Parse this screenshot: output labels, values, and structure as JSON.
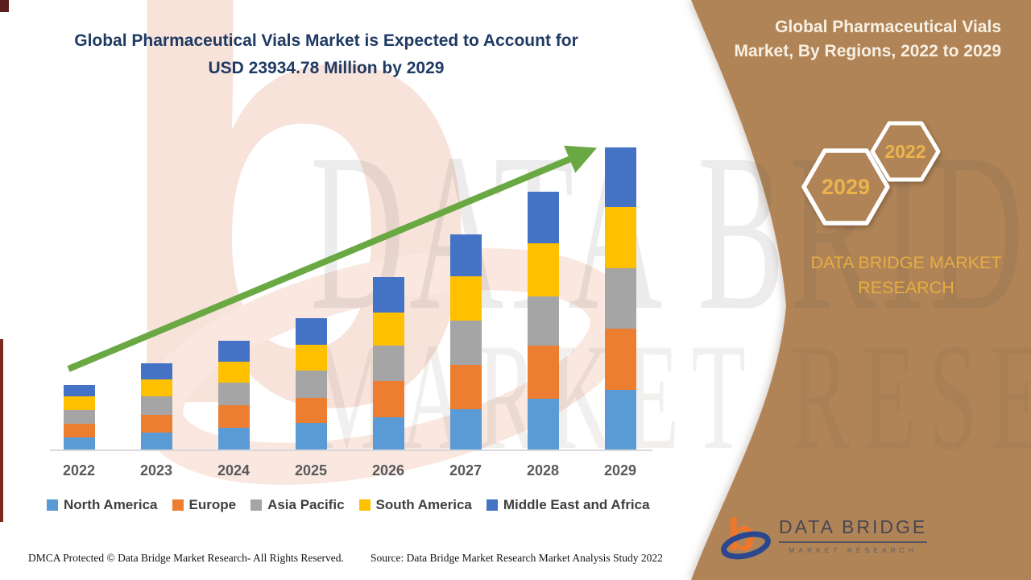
{
  "header": {
    "title_line1": "Global Pharmaceutical Vials Market is Expected to Account for",
    "title_line2": "USD 23934.78 Million by 2029",
    "title_color": "#1f3a63"
  },
  "side_panel": {
    "bg_color": "#b08457",
    "title_line1": "Global Pharmaceutical Vials",
    "title_line2": "Market, By Regions, 2022 to 2029",
    "hex_front_label": "2029",
    "hex_back_label": "2022",
    "brand": "DATA BRIDGE MARKET RESEARCH",
    "gold_color": "#e6ad41"
  },
  "watermarks": {
    "logo_letter": "b",
    "word1": "DATA BRIDGE",
    "word2": "MARKET RESEARCH"
  },
  "logo": {
    "name": "DATA BRIDGE",
    "subtitle": "MARKET RESEARCH",
    "b_letter": "b",
    "orange": "#f0762a",
    "blue": "#2a478f"
  },
  "footer": {
    "dmca": "DMCA Protected © Data Bridge Market Research- All Rights Reserved.",
    "source": "Source: Data Bridge Market Research Market Analysis Study 2022"
  },
  "chart_data": {
    "type": "bar",
    "stacked": true,
    "title": "Global Pharmaceutical Vials Market, By Regions, 2022 to 2029",
    "unit": "USD Million",
    "categories": [
      "2022",
      "2023",
      "2024",
      "2025",
      "2026",
      "2027",
      "2028",
      "2029"
    ],
    "series": [
      {
        "name": "North America",
        "color": "#5b9bd5",
        "values": [
          960,
          1340,
          1730,
          2110,
          2560,
          3200,
          4030,
          4740
        ]
      },
      {
        "name": "Europe",
        "color": "#ed7d31",
        "values": [
          1090,
          1410,
          1790,
          1980,
          2880,
          3520,
          4220,
          4860
        ]
      },
      {
        "name": "Asia Pacific",
        "color": "#a5a5a5",
        "values": [
          1090,
          1470,
          1790,
          2180,
          2820,
          3520,
          3900,
          4740
        ]
      },
      {
        "name": "South America",
        "color": "#ffc000",
        "values": [
          1090,
          1340,
          1660,
          2050,
          2620,
          3460,
          4160,
          4860
        ]
      },
      {
        "name": "Middle East and Africa",
        "color": "#4472c4",
        "values": [
          900,
          1280,
          1660,
          2110,
          2750,
          3330,
          4100,
          4734.78
        ]
      }
    ],
    "totals": [
      5130,
      6840,
      8630,
      10430,
      13630,
      17030,
      20410,
      23934.78
    ],
    "ylim": [
      0,
      23934.78
    ],
    "xlabel": "",
    "ylabel": "",
    "gridlines": false,
    "legend_position": "bottom",
    "trend_arrow": true,
    "trend_color": "#6aa843"
  }
}
